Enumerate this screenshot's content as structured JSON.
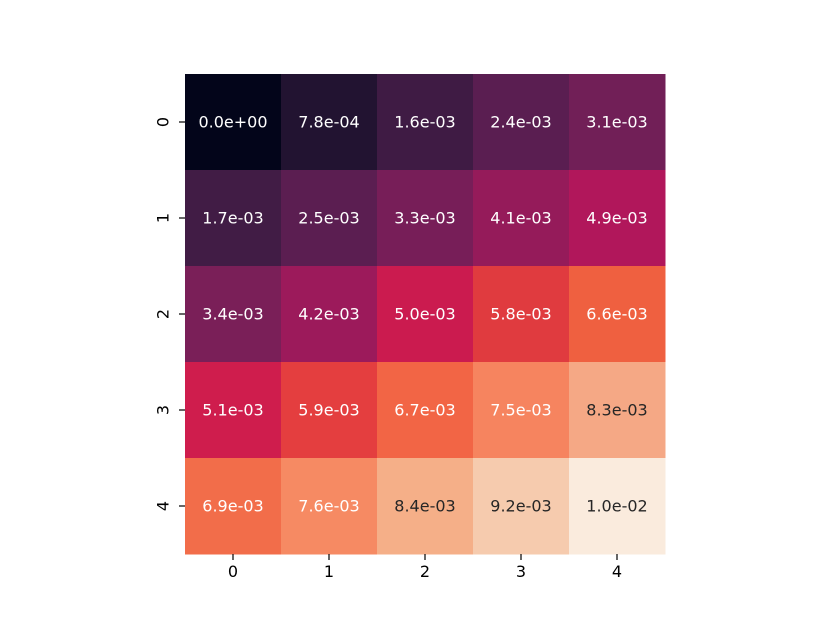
{
  "chart_data": {
    "type": "heatmap",
    "x_categories": [
      "0",
      "1",
      "2",
      "3",
      "4"
    ],
    "y_categories": [
      "0",
      "1",
      "2",
      "3",
      "4"
    ],
    "values": [
      [
        0.0,
        0.00078,
        0.0016,
        0.0024,
        0.0031
      ],
      [
        0.0017,
        0.0025,
        0.0033,
        0.0041,
        0.0049
      ],
      [
        0.0034,
        0.0042,
        0.005,
        0.0058,
        0.0066
      ],
      [
        0.0051,
        0.0059,
        0.0067,
        0.0075,
        0.0083
      ],
      [
        0.0069,
        0.0076,
        0.0084,
        0.0092,
        0.01
      ]
    ],
    "labels": [
      [
        "0.0e+00",
        "7.8e-04",
        "1.6e-03",
        "2.4e-03",
        "3.1e-03"
      ],
      [
        "1.7e-03",
        "2.5e-03",
        "3.3e-03",
        "4.1e-03",
        "4.9e-03"
      ],
      [
        "3.4e-03",
        "4.2e-03",
        "5.0e-03",
        "5.8e-03",
        "6.6e-03"
      ],
      [
        "5.1e-03",
        "5.9e-03",
        "6.7e-03",
        "7.5e-03",
        "8.3e-03"
      ],
      [
        "6.9e-03",
        "7.6e-03",
        "8.4e-03",
        "9.2e-03",
        "1.0e-02"
      ]
    ],
    "colors": [
      [
        "#03051a",
        "#221331",
        "#3f1b44",
        "#5a1e51",
        "#711f57"
      ],
      [
        "#411c45",
        "#5b1e51",
        "#771e58",
        "#951b5a",
        "#b1175b"
      ],
      [
        "#7a1f58",
        "#9c1a5b",
        "#cb1b4f",
        "#e03b3f",
        "#ef6040"
      ],
      [
        "#cf1d4d",
        "#e43e3f",
        "#f26545",
        "#f6845f",
        "#f5a885"
      ],
      [
        "#f26d4a",
        "#f68a63",
        "#f5af88",
        "#f6cbae",
        "#faebdd"
      ]
    ],
    "label_colors": [
      [
        "#ffffff",
        "#ffffff",
        "#ffffff",
        "#ffffff",
        "#ffffff"
      ],
      [
        "#ffffff",
        "#ffffff",
        "#ffffff",
        "#ffffff",
        "#ffffff"
      ],
      [
        "#ffffff",
        "#ffffff",
        "#ffffff",
        "#ffffff",
        "#ffffff"
      ],
      [
        "#ffffff",
        "#ffffff",
        "#ffffff",
        "#ffffff",
        "#262626"
      ],
      [
        "#ffffff",
        "#ffffff",
        "#262626",
        "#262626",
        "#262626"
      ]
    ],
    "colormap": "rocket",
    "colorbar": false,
    "grid": false,
    "title": "",
    "xlabel": "",
    "ylabel": ""
  }
}
